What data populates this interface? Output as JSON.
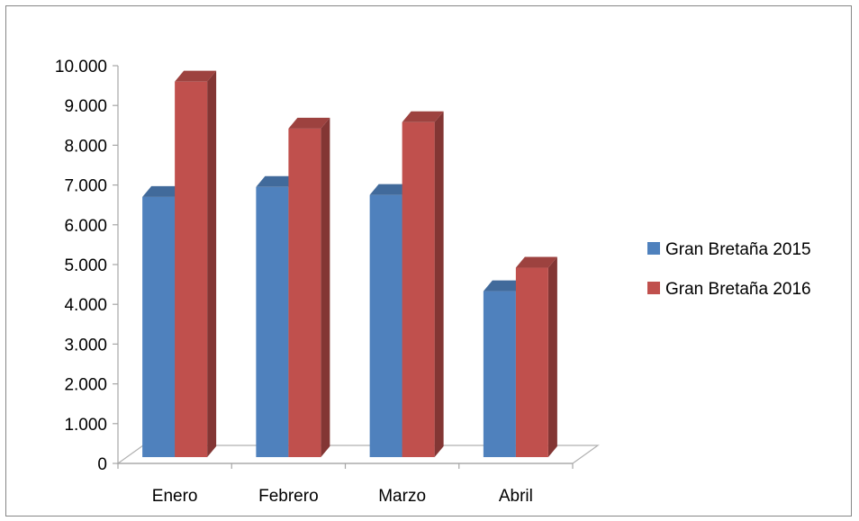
{
  "chart_data": {
    "type": "bar",
    "style": "3d-clustered-column",
    "categories": [
      "Enero",
      "Febrero",
      "Marzo",
      "Abril"
    ],
    "series": [
      {
        "name": "Gran Bretaña 2015",
        "values": [
          6700,
          6950,
          6750,
          4330
        ],
        "color": "#4F81BD"
      },
      {
        "name": "Gran Bretaña 2016",
        "values": [
          9600,
          8420,
          8580,
          4920
        ],
        "color": "#C0504D"
      }
    ],
    "yticks": [
      "0",
      "1.000",
      "2.000",
      "3.000",
      "4.000",
      "5.000",
      "6.000",
      "7.000",
      "8.000",
      "9.000",
      "10.000"
    ],
    "ylim": [
      0,
      10000
    ],
    "title": "",
    "xlabel": "",
    "ylabel": "",
    "grid": false,
    "legend_position": "right"
  }
}
